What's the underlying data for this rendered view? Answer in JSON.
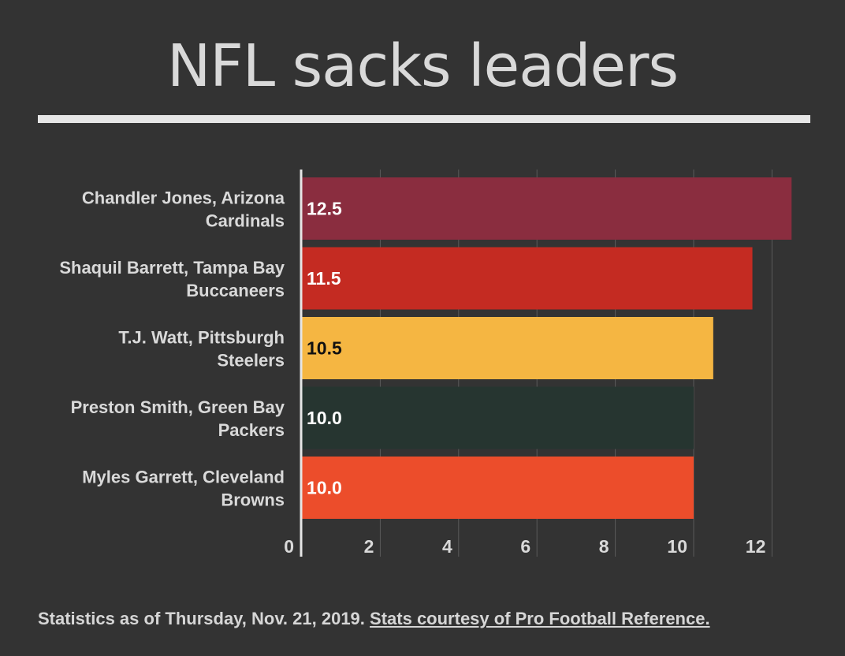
{
  "header": {
    "title": "NFL sacks leaders"
  },
  "footer": {
    "note": "Statistics as of Thursday, Nov. 21, 2019.",
    "source_link": "Stats courtesy of Pro Football Reference."
  },
  "chart_data": {
    "type": "bar",
    "orientation": "horizontal",
    "title": "NFL sacks leaders",
    "xlabel": "",
    "ylabel": "",
    "categories": [
      [
        "Chandler Jones, Arizona",
        "Cardinals"
      ],
      [
        "Shaquil Barrett, Tampa Bay",
        "Buccaneers"
      ],
      [
        "T.J. Watt, Pittsburgh",
        "Steelers"
      ],
      [
        "Preston Smith, Green Bay",
        "Packers"
      ],
      [
        "Myles Garrett, Cleveland",
        "Browns"
      ]
    ],
    "values": [
      12.5,
      11.5,
      10.5,
      10.0,
      10.0
    ],
    "value_labels": [
      "12.5",
      "11.5",
      "10.5",
      "10.0",
      "10.0"
    ],
    "colors": [
      "#8a2d3f",
      "#c42b22",
      "#f5b642",
      "#263530",
      "#ec4d2b"
    ],
    "label_colors": [
      "#ffffff",
      "#ffffff",
      "#111111",
      "#ffffff",
      "#ffffff"
    ],
    "xlim": [
      0,
      13
    ],
    "xticks": [
      0,
      2,
      4,
      6,
      8,
      10,
      12
    ],
    "grid": true,
    "legend": "none"
  }
}
